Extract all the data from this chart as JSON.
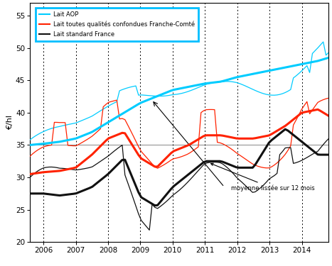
{
  "ylabel": "€/hl",
  "ylim": [
    20,
    57
  ],
  "yticks": [
    20,
    25,
    30,
    35,
    40,
    45,
    50,
    55
  ],
  "xlim_start": 2005.58,
  "xlim_end": 2014.83,
  "xtick_years": [
    2006,
    2007,
    2008,
    2009,
    2010,
    2011,
    2012,
    2013,
    2014
  ],
  "vlines": [
    2006,
    2007,
    2008,
    2009,
    2010,
    2011,
    2012,
    2013,
    2014
  ],
  "hline": 35,
  "bg_color": "#ffffff",
  "legend_box_color": "#00bfff",
  "annotation_text": "moyenne lissée sur 12 mois",
  "series": {
    "aop_raw": {
      "color": "#00ccff",
      "lw": 0.9,
      "label": "Lait AOP"
    },
    "aop_smooth": {
      "color": "#00ccff",
      "lw": 2.2,
      "label": ""
    },
    "fc_raw": {
      "color": "#ff2200",
      "lw": 0.9,
      "label": "Lait toutes qualités confondues Franche-Comté"
    },
    "fc_smooth": {
      "color": "#ff2200",
      "lw": 2.2,
      "label": ""
    },
    "fr_raw": {
      "color": "#111111",
      "lw": 0.9,
      "label": "Lait standard France"
    },
    "fr_smooth": {
      "color": "#111111",
      "lw": 2.2,
      "label": ""
    }
  },
  "aop_smooth_pts": {
    "x": [
      2005.58,
      2006.0,
      2006.5,
      2007.0,
      2007.5,
      2008.0,
      2008.5,
      2009.0,
      2009.5,
      2010.0,
      2010.5,
      2011.0,
      2011.5,
      2012.0,
      2012.5,
      2013.0,
      2013.5,
      2014.0,
      2014.5,
      2014.83
    ],
    "y": [
      35.0,
      35.2,
      35.5,
      36.0,
      37.0,
      38.5,
      40.0,
      41.5,
      42.5,
      43.5,
      44.0,
      44.5,
      44.8,
      45.5,
      46.0,
      46.5,
      47.0,
      47.5,
      48.0,
      48.5
    ]
  },
  "fc_smooth_pts": {
    "x": [
      2005.58,
      2006.0,
      2006.5,
      2007.0,
      2007.5,
      2008.0,
      2008.5,
      2009.0,
      2009.5,
      2010.0,
      2010.5,
      2011.0,
      2011.5,
      2012.0,
      2012.5,
      2013.0,
      2013.5,
      2014.0,
      2014.5,
      2014.83
    ],
    "y": [
      30.5,
      30.8,
      31.0,
      31.5,
      33.5,
      36.0,
      37.0,
      33.0,
      31.5,
      34.0,
      35.0,
      36.5,
      36.5,
      36.0,
      36.0,
      36.5,
      38.0,
      40.0,
      40.5,
      39.5
    ]
  },
  "fr_smooth_pts": {
    "x": [
      2005.58,
      2006.0,
      2006.5,
      2007.0,
      2007.5,
      2008.0,
      2008.5,
      2009.0,
      2009.5,
      2010.0,
      2010.5,
      2011.0,
      2011.5,
      2012.0,
      2012.5,
      2013.0,
      2013.5,
      2014.0,
      2014.5,
      2014.83
    ],
    "y": [
      27.5,
      27.5,
      27.2,
      27.5,
      28.5,
      30.5,
      33.0,
      27.0,
      25.5,
      28.5,
      30.5,
      32.5,
      32.5,
      31.5,
      31.5,
      35.5,
      37.5,
      35.5,
      33.5,
      33.5
    ]
  }
}
